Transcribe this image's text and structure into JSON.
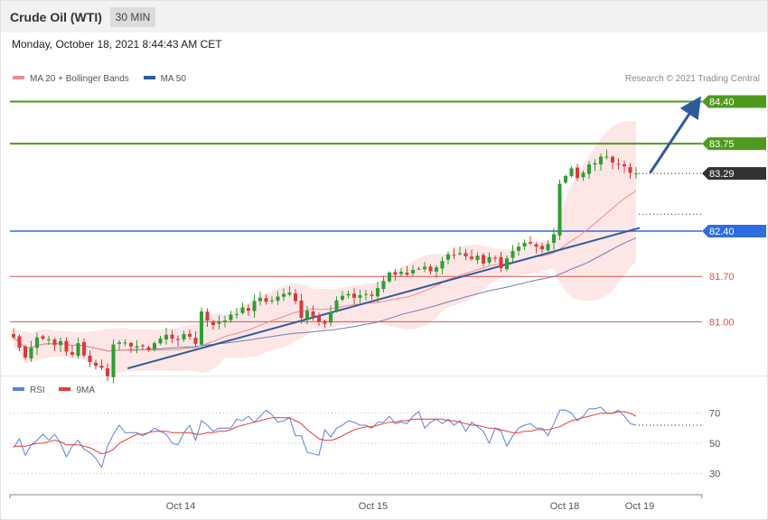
{
  "header": {
    "title": "Crude Oil (WTI)",
    "timeframe": "30 MIN",
    "datetime": "Monday, October 18, 2021 8:44:43 AM CET"
  },
  "legend": {
    "ma20_label": "MA 20 + Bollinger Bands",
    "ma50_label": "MA 50",
    "rsi_label": "RSI",
    "ma9_label": "9MA"
  },
  "credit": "Research © 2021 Trading Central",
  "colors": {
    "bull": "#2e9e35",
    "bear": "#d93a3a",
    "resistance": "#4f9a1e",
    "pivot": "#2f6de1",
    "support": "#e05252",
    "trendline": "#2f5b9a",
    "ma20": "#f28b8b",
    "ma50": "#6e7fb3",
    "band": "#fde2e2",
    "rsi": "#5b7fdd",
    "rsi_ma": "#e53935",
    "last_price": "#333333"
  },
  "chart_data": [
    {
      "type": "candlestick",
      "title": "Crude Oil (WTI)",
      "ylim": [
        80.1,
        84.7
      ],
      "x_tick_labels": [
        "Oct 14",
        "Oct 15",
        "Oct 18",
        "Oct 19"
      ],
      "price_levels": [
        {
          "label": "84.40",
          "value": 84.4,
          "kind": "resistance"
        },
        {
          "label": "83.75",
          "value": 83.75,
          "kind": "resistance"
        },
        {
          "label": "83.29",
          "value": 83.29,
          "kind": "last"
        },
        {
          "label": "82.40",
          "value": 82.4,
          "kind": "pivot"
        },
        {
          "label": "81.70",
          "value": 81.7,
          "kind": "support"
        },
        {
          "label": "81.00",
          "value": 81.0,
          "kind": "support"
        }
      ],
      "trendline": [
        [
          0.17,
          80.28
        ],
        [
          0.91,
          82.45
        ]
      ],
      "target_arrow": [
        [
          0.925,
          83.3
        ],
        [
          1.0,
          84.38
        ]
      ],
      "close": [
        80.76,
        80.6,
        80.45,
        80.6,
        80.76,
        80.74,
        80.73,
        80.64,
        80.7,
        80.54,
        80.49,
        80.67,
        80.48,
        80.38,
        80.32,
        80.29,
        80.16,
        80.65,
        80.68,
        80.68,
        80.62,
        80.62,
        80.62,
        80.56,
        80.67,
        80.74,
        80.8,
        80.74,
        80.72,
        80.81,
        80.77,
        80.66,
        81.16,
        81.02,
        80.95,
        81.0,
        81.02,
        81.11,
        81.12,
        81.22,
        81.17,
        81.32,
        81.37,
        81.31,
        81.33,
        81.39,
        81.43,
        81.45,
        81.32,
        81.06,
        81.17,
        81.08,
        81.0,
        80.97,
        81.15,
        81.33,
        81.4,
        81.43,
        81.37,
        81.41,
        81.43,
        81.4,
        81.52,
        81.63,
        81.76,
        81.73,
        81.77,
        81.73,
        81.8,
        81.82,
        81.85,
        81.78,
        81.84,
        81.94,
        82.04,
        82.03,
        82.06,
        82.01,
        81.97,
        82.02,
        81.9,
        82.0,
        81.98,
        81.83,
        81.98,
        82.09,
        82.16,
        82.22,
        82.21,
        82.16,
        82.12,
        82.2,
        82.35,
        83.13,
        83.25,
        83.37,
        83.22,
        83.3,
        83.43,
        83.45,
        83.55,
        83.55,
        83.46,
        83.44,
        83.4,
        83.3,
        83.29
      ],
      "bollinger_bands": {
        "upper_end": 83.9,
        "lower_end": 81.7
      },
      "moving_averages": [
        {
          "name": "MA 20 + Bollinger Bands",
          "end_value": 83.0
        },
        {
          "name": "MA 50",
          "end_value": 82.5
        }
      ]
    },
    {
      "type": "line",
      "title": "RSI",
      "ylim": [
        20,
        80
      ],
      "y_ticks": [
        70,
        50,
        30
      ],
      "series": [
        {
          "name": "RSI",
          "values": [
            47,
            53,
            42,
            49,
            52,
            56,
            52,
            56,
            50,
            41,
            48,
            52,
            46,
            44,
            40,
            34,
            48,
            56,
            62,
            57,
            57,
            57,
            55,
            57,
            60,
            58,
            56,
            50,
            49,
            57,
            62,
            52,
            65,
            62,
            58,
            60,
            60,
            60,
            66,
            65,
            68,
            64,
            68,
            72,
            69,
            64,
            65,
            67,
            55,
            55,
            44,
            43,
            42,
            59,
            54,
            60,
            62,
            65,
            64,
            62,
            62,
            60,
            64,
            64,
            68,
            63,
            64,
            63,
            68,
            71,
            60,
            64,
            66,
            63,
            66,
            62,
            65,
            58,
            64,
            61,
            58,
            50,
            60,
            58,
            48,
            55,
            60,
            62,
            63,
            60,
            60,
            55,
            63,
            72,
            72,
            70,
            65,
            68,
            73,
            73,
            74,
            70,
            70,
            72,
            68,
            63,
            62
          ]
        },
        {
          "name": "9MA",
          "values": [
            48,
            48,
            48,
            49,
            50,
            50,
            51,
            52,
            51,
            49,
            49,
            49,
            48,
            47,
            45,
            43,
            44,
            46,
            50,
            52,
            54,
            56,
            56,
            57,
            58,
            58,
            58,
            57,
            57,
            57,
            57,
            56,
            56,
            57,
            57,
            58,
            58,
            59,
            61,
            62,
            63,
            64,
            65,
            66,
            67,
            67,
            67,
            67,
            65,
            63,
            59,
            56,
            53,
            52,
            52,
            53,
            55,
            57,
            59,
            60,
            61,
            61,
            62,
            63,
            64,
            64,
            65,
            65,
            66,
            66,
            66,
            66,
            66,
            66,
            65,
            65,
            64,
            63,
            62,
            62,
            61,
            60,
            60,
            59,
            58,
            57,
            57,
            58,
            58,
            59,
            59,
            59,
            60,
            61,
            63,
            65,
            66,
            67,
            68,
            69,
            70,
            70,
            70,
            71,
            71,
            70,
            68
          ]
        }
      ],
      "x_tick_labels": [
        "Oct 14",
        "Oct 15",
        "Oct 18",
        "Oct 19"
      ]
    }
  ]
}
